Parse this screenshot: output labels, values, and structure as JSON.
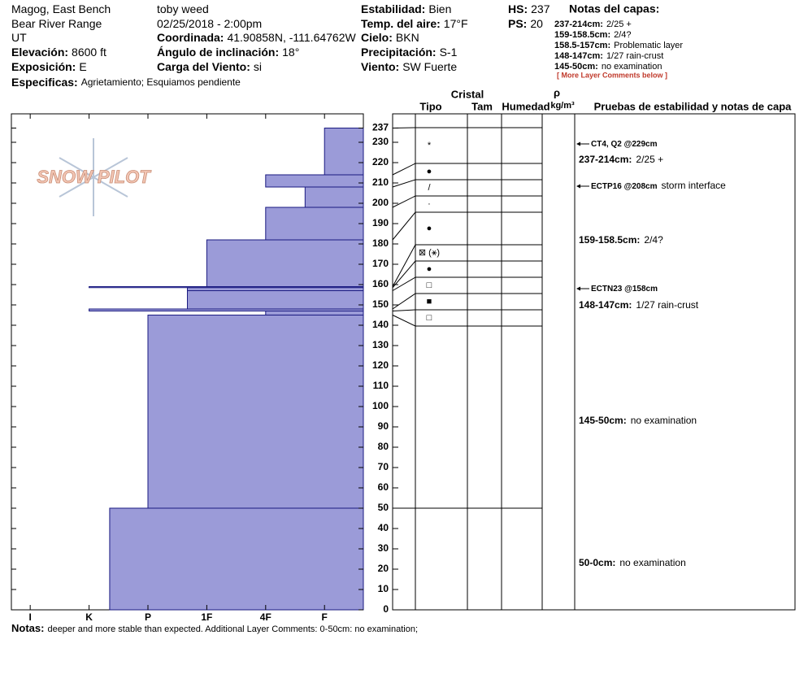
{
  "header": {
    "columns": [
      [
        {
          "value": "Magog, East Bench"
        },
        {
          "value": "Bear River Range"
        },
        {
          "value": "UT"
        },
        {
          "label": "Elevación:",
          "value": "8600 ft"
        },
        {
          "label": "Exposición:",
          "value": "E"
        }
      ],
      [
        {
          "value": "toby weed"
        },
        {
          "value": "02/25/2018 - 2:00pm"
        },
        {
          "label": "Coordinada:",
          "value": "41.90858N, -111.64762W"
        },
        {
          "label": "Ángulo de inclinación:",
          "value": "18°"
        },
        {
          "label": "Carga del Viento:",
          "value": "si"
        }
      ],
      [
        {
          "label": "Estabilidad:",
          "value": "Bien"
        },
        {
          "label": "Temp. del aire:",
          "value": "17°F"
        },
        {
          "label": "Cielo:",
          "value": "BKN"
        },
        {
          "label": "Precipitación:",
          "value": "S-1"
        },
        {
          "label": "Viento:",
          "value": "SW Fuerte"
        }
      ],
      [
        {
          "label": "HS:",
          "value": "237"
        },
        {
          "label": "PS:",
          "value": "20"
        }
      ]
    ],
    "specifics": {
      "label": "Especificas:",
      "value": "Agrietamiento; Esquiamos pendiente"
    },
    "layer_notes": {
      "title": "Notas del capas:",
      "items": [
        {
          "label": "237-214cm:",
          "value": "2/25 +"
        },
        {
          "label": "159-158.5cm:",
          "value": "2/4?"
        },
        {
          "label": "158.5-157cm:",
          "value": "Problematic layer"
        },
        {
          "label": "148-147cm:",
          "value": "1/27 rain-crust"
        },
        {
          "label": "145-50cm:",
          "value": "no examination"
        }
      ],
      "more": "[ More Layer Comments below ]"
    }
  },
  "logo": "SNOW PILOT",
  "chart_data": {
    "type": "hardness-profile",
    "layers": [
      {
        "top": 237,
        "bottom": 214,
        "hardness": 1,
        "grain": "*"
      },
      {
        "top": 214,
        "bottom": 208,
        "hardness": 2,
        "grain": "●"
      },
      {
        "top": 208,
        "bottom": 198,
        "hardness": 1.33,
        "grain": "/"
      },
      {
        "top": 198,
        "bottom": 182,
        "hardness": 2,
        "grain": "·"
      },
      {
        "top": 182,
        "bottom": 159,
        "hardness": 3,
        "grain": "●"
      },
      {
        "top": 159,
        "bottom": 158.5,
        "hardness": 5,
        "grain": "⊠ (⚹)"
      },
      {
        "top": 158.5,
        "bottom": 157,
        "hardness": 3.33,
        "grain": "●"
      },
      {
        "top": 157,
        "bottom": 148,
        "hardness": 3.33,
        "grain": "□"
      },
      {
        "top": 148,
        "bottom": 147,
        "hardness": 5,
        "grain": "■"
      },
      {
        "top": 147,
        "bottom": 145,
        "hardness": 2,
        "grain": "□"
      },
      {
        "top": 145,
        "bottom": 50,
        "hardness": 4
      },
      {
        "top": 50,
        "bottom": 0,
        "hardness": 4.65
      }
    ],
    "ylim": [
      0,
      244
    ],
    "yticks": [
      0,
      10,
      20,
      30,
      40,
      50,
      60,
      70,
      80,
      90,
      100,
      110,
      120,
      130,
      140,
      150,
      160,
      170,
      180,
      190,
      200,
      210,
      220,
      230,
      237
    ],
    "xlim": [
      6.32,
      0.34
    ],
    "xticks": [
      {
        "value": 6,
        "label": "I"
      },
      {
        "value": 5,
        "label": "K"
      },
      {
        "value": 4,
        "label": "P"
      },
      {
        "value": 3,
        "label": "1F"
      },
      {
        "value": 2,
        "label": "4F"
      },
      {
        "value": 1,
        "label": "F"
      }
    ],
    "color": "#9b9bd8",
    "edge_color": "#1a1a80"
  },
  "profile_table": {
    "crystal": "Cristal",
    "type": "Tipo",
    "size": "Tam",
    "moisture": "Humedad",
    "density_symbol": "ρ",
    "density_unit": "kg/m³",
    "tests": "Pruebas de estabilidad y notas de capa"
  },
  "stability_notes": [
    {
      "label": "CT4, Q2 @229cm",
      "arrow": true
    },
    {
      "label": "237-214cm:",
      "value": "2/25 +"
    },
    {
      "label": "ECTP16 @208cm",
      "value": "storm interface",
      "arrow": true
    },
    {
      "label": "159-158.5cm:",
      "value": "2/4?"
    },
    {
      "label": "ECTN23 @158cm",
      "arrow": true
    },
    {
      "label": "148-147cm:",
      "value": "1/27 rain-crust"
    },
    {
      "label": "145-50cm:",
      "value": "no examination"
    },
    {
      "label": "50-0cm:",
      "value": "no examination"
    }
  ],
  "notes": {
    "label": "Notas:",
    "value": "deeper and more stable than expected. Additional Layer Comments: 0-50cm: no examination;"
  }
}
